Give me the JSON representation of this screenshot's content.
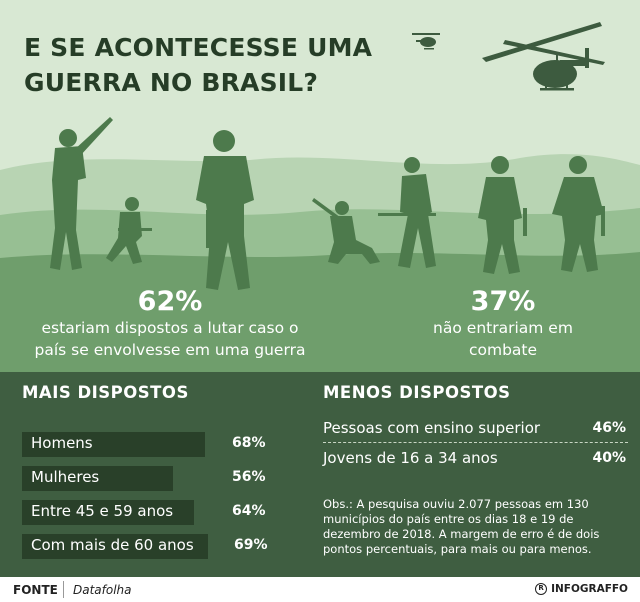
{
  "title": "E SE ACONTECESSE UMA GUERRA NO BRASIL?",
  "colors": {
    "sky": "#d8e8d3",
    "hill_light": "#b8d4b3",
    "hill_mid": "#97bf93",
    "ground": "#6f9e6c",
    "silhouette": "#4d7a4c",
    "panel": "#3f5e41",
    "bar": "#294029"
  },
  "stats": [
    {
      "value": "62%",
      "description_line1": "estariam dispostos a lutar caso o",
      "description_line2": "país se envolvesse em uma guerra"
    },
    {
      "value": "37%",
      "description_line1": "não entrariam em",
      "description_line2": "combate"
    }
  ],
  "mais_dispostos": {
    "title": "MAIS DISPOSTOS",
    "items": [
      {
        "label": "Homens",
        "value": "68%",
        "fraction": 0.68
      },
      {
        "label": "Mulheres",
        "value": "56%",
        "fraction": 0.56
      },
      {
        "label": "Entre 45 e 59 anos",
        "value": "64%",
        "fraction": 0.64
      },
      {
        "label": "Com mais de 60 anos",
        "value": "69%",
        "fraction": 0.69
      }
    ]
  },
  "menos_dispostos": {
    "title": "MENOS DISPOSTOS",
    "items": [
      {
        "label": "Pessoas com ensino superior",
        "value": "46%"
      },
      {
        "label": "Jovens de 16 a 34 anos",
        "value": "40%"
      }
    ]
  },
  "note": "Obs.: A pesquisa ouviu 2.077 pessoas em 130 municípios do país entre os dias 18 e 19 de dezembro de 2018. A margem de erro é de dois pontos percentuais, para mais ou para menos.",
  "footer": {
    "source_label": "FONTE",
    "source_value": "Datafolha",
    "brand": "INFOGRAFFO",
    "brand_mark": "R"
  },
  "icons": [
    "helicopter-icon",
    "soldier-icon",
    "infograffo-logo-icon"
  ]
}
